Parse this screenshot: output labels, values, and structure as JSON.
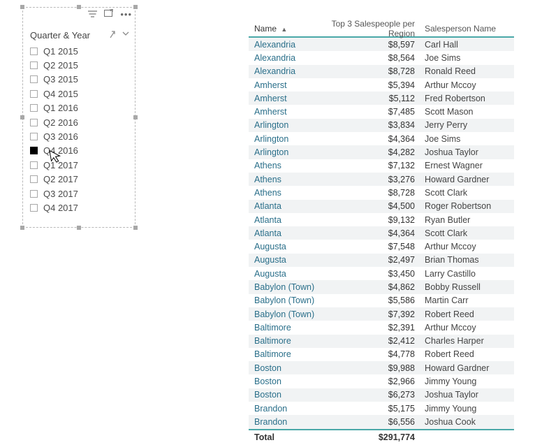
{
  "slicer": {
    "title": "Quarter & Year",
    "items": [
      {
        "label": "Q1 2015",
        "checked": false
      },
      {
        "label": "Q2 2015",
        "checked": false
      },
      {
        "label": "Q3 2015",
        "checked": false
      },
      {
        "label": "Q4 2015",
        "checked": false
      },
      {
        "label": "Q1 2016",
        "checked": false
      },
      {
        "label": "Q2 2016",
        "checked": false
      },
      {
        "label": "Q3 2016",
        "checked": false
      },
      {
        "label": "Q4 2016",
        "checked": true
      },
      {
        "label": "Q1 2017",
        "checked": false
      },
      {
        "label": "Q2 2017",
        "checked": false
      },
      {
        "label": "Q3 2017",
        "checked": false
      },
      {
        "label": "Q4 2017",
        "checked": false
      }
    ]
  },
  "table": {
    "columns": {
      "name": "Name",
      "metric": "Top 3 Salespeople per Region",
      "person": "Salesperson Name"
    },
    "name_link_color": "#2a6f8a",
    "accent_color": "#4aa8a8",
    "alt_row_color": "#f1f3f4",
    "rows": [
      {
        "name": "Alexandria",
        "value": "$8,597",
        "person": "Carl Hall"
      },
      {
        "name": "Alexandria",
        "value": "$8,564",
        "person": "Joe Sims"
      },
      {
        "name": "Alexandria",
        "value": "$8,728",
        "person": "Ronald Reed"
      },
      {
        "name": "Amherst",
        "value": "$5,394",
        "person": "Arthur Mccoy"
      },
      {
        "name": "Amherst",
        "value": "$5,112",
        "person": "Fred Robertson"
      },
      {
        "name": "Amherst",
        "value": "$7,485",
        "person": "Scott Mason"
      },
      {
        "name": "Arlington",
        "value": "$3,834",
        "person": "Jerry Perry"
      },
      {
        "name": "Arlington",
        "value": "$4,364",
        "person": "Joe Sims"
      },
      {
        "name": "Arlington",
        "value": "$4,282",
        "person": "Joshua Taylor"
      },
      {
        "name": "Athens",
        "value": "$7,132",
        "person": "Ernest Wagner"
      },
      {
        "name": "Athens",
        "value": "$3,276",
        "person": "Howard Gardner"
      },
      {
        "name": "Athens",
        "value": "$8,728",
        "person": "Scott Clark"
      },
      {
        "name": "Atlanta",
        "value": "$4,500",
        "person": "Roger Robertson"
      },
      {
        "name": "Atlanta",
        "value": "$9,132",
        "person": "Ryan Butler"
      },
      {
        "name": "Atlanta",
        "value": "$4,364",
        "person": "Scott Clark"
      },
      {
        "name": "Augusta",
        "value": "$7,548",
        "person": "Arthur Mccoy"
      },
      {
        "name": "Augusta",
        "value": "$2,497",
        "person": "Brian Thomas"
      },
      {
        "name": "Augusta",
        "value": "$3,450",
        "person": "Larry Castillo"
      },
      {
        "name": "Babylon (Town)",
        "value": "$4,862",
        "person": "Bobby Russell"
      },
      {
        "name": "Babylon (Town)",
        "value": "$5,586",
        "person": "Martin Carr"
      },
      {
        "name": "Babylon (Town)",
        "value": "$7,392",
        "person": "Robert Reed"
      },
      {
        "name": "Baltimore",
        "value": "$2,391",
        "person": "Arthur Mccoy"
      },
      {
        "name": "Baltimore",
        "value": "$2,412",
        "person": "Charles Harper"
      },
      {
        "name": "Baltimore",
        "value": "$4,778",
        "person": "Robert Reed"
      },
      {
        "name": "Boston",
        "value": "$9,988",
        "person": "Howard Gardner"
      },
      {
        "name": "Boston",
        "value": "$2,966",
        "person": "Jimmy Young"
      },
      {
        "name": "Boston",
        "value": "$6,273",
        "person": "Joshua Taylor"
      },
      {
        "name": "Brandon",
        "value": "$5,175",
        "person": "Jimmy Young"
      },
      {
        "name": "Brandon",
        "value": "$6,556",
        "person": "Joshua Cook"
      }
    ],
    "total_label": "Total",
    "total_value": "$291,774"
  }
}
